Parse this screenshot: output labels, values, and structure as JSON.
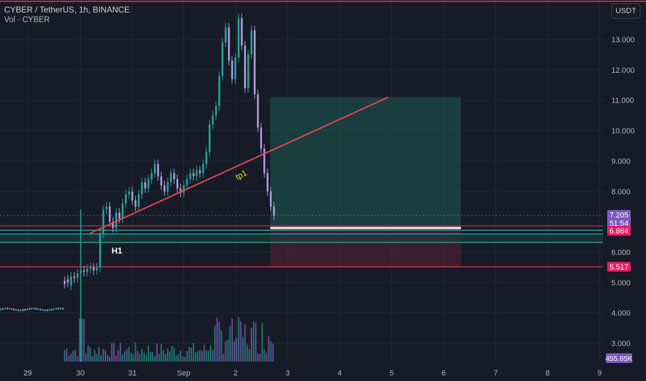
{
  "header": {
    "symbol_line": "CYBER / TetherUS, 1h, BINANCE",
    "volume_line": "Vol · CYBER",
    "currency_button": "USDT"
  },
  "price_axis": {
    "ticks": [
      "13.000",
      "12.000",
      "11.000",
      "10.000",
      "9.000",
      "8.000",
      "6.000",
      "5.000",
      "4.000",
      "3.000"
    ]
  },
  "time_axis": {
    "ticks": [
      "29",
      "30",
      "31",
      "Sep",
      "2",
      "3",
      "4",
      "5",
      "6",
      "7",
      "8",
      "9"
    ]
  },
  "badges": {
    "last_price": "7.205",
    "countdown": "51:54",
    "level_upper": "6.864",
    "level_lower": "5.517",
    "volume": "455.65K"
  },
  "annotations": {
    "h1_label": "H1",
    "tp1_label": "tp1"
  },
  "colors": {
    "up": "#26a69a",
    "down": "#b39ddb",
    "trend": "#e0484e",
    "level": "#f23645",
    "zone": "#26a69a",
    "badge_purple": "#7e57c2"
  },
  "chart_data": {
    "type": "candlestick",
    "ylim": [
      2.6,
      13.9
    ],
    "price_path": [
      [
        5.05,
        4.95
      ],
      [
        5.1,
        5.0
      ],
      [
        4.9,
        5.2
      ],
      [
        5.2,
        5.15
      ],
      [
        5.15,
        5.3
      ],
      [
        5.3,
        5.4
      ],
      [
        5.4,
        5.35
      ],
      [
        5.35,
        5.45
      ],
      [
        5.45,
        5.5
      ],
      [
        5.5,
        5.4
      ],
      [
        5.4,
        5.5
      ],
      [
        5.5,
        6.6
      ],
      [
        6.6,
        7.4
      ],
      [
        7.4,
        7.5
      ],
      [
        7.5,
        7.0
      ],
      [
        7.0,
        6.8
      ],
      [
        6.8,
        7.3
      ],
      [
        7.3,
        7.1
      ],
      [
        7.1,
        7.6
      ],
      [
        7.6,
        7.9
      ],
      [
        7.9,
        8.0
      ],
      [
        8.0,
        7.7
      ],
      [
        7.7,
        7.5
      ],
      [
        7.5,
        7.9
      ],
      [
        7.9,
        8.3
      ],
      [
        8.3,
        8.1
      ],
      [
        8.1,
        8.4
      ],
      [
        8.4,
        8.6
      ],
      [
        8.6,
        8.9
      ],
      [
        8.9,
        8.5
      ],
      [
        8.5,
        8.2
      ],
      [
        8.2,
        8.0
      ],
      [
        8.0,
        8.3
      ],
      [
        8.3,
        8.6
      ],
      [
        8.6,
        8.4
      ],
      [
        8.4,
        8.1
      ],
      [
        8.1,
        7.95
      ],
      [
        7.95,
        8.2
      ],
      [
        8.2,
        8.4
      ],
      [
        8.4,
        8.6
      ],
      [
        8.6,
        8.5
      ],
      [
        8.5,
        8.7
      ],
      [
        8.7,
        8.6
      ],
      [
        8.6,
        8.9
      ],
      [
        8.9,
        9.3
      ],
      [
        9.3,
        10.2
      ],
      [
        10.2,
        10.5
      ],
      [
        10.5,
        10.8
      ],
      [
        10.8,
        11.8
      ],
      [
        11.8,
        12.9
      ],
      [
        12.9,
        13.4
      ],
      [
        13.4,
        12.3
      ],
      [
        12.3,
        11.7
      ],
      [
        11.7,
        12.4
      ],
      [
        12.4,
        13.7
      ],
      [
        13.7,
        12.8
      ],
      [
        12.8,
        11.4
      ],
      [
        11.4,
        12.5
      ],
      [
        12.5,
        13.3
      ],
      [
        13.3,
        11.2
      ],
      [
        11.2,
        10.1
      ],
      [
        10.1,
        9.4
      ],
      [
        9.4,
        8.6
      ],
      [
        8.6,
        8.0
      ],
      [
        8.0,
        7.5
      ],
      [
        7.5,
        7.2
      ]
    ],
    "trendline": {
      "from": [
        "Aug 30",
        6.64
      ],
      "to": [
        "Sep 5",
        11.1
      ]
    },
    "levels": [
      7.205,
      6.864,
      6.72,
      6.6,
      6.32,
      5.517,
      13.95
    ],
    "position": {
      "entry": 6.864,
      "target": 11.1,
      "stop": 5.517
    },
    "volume_last": "455.65K"
  }
}
